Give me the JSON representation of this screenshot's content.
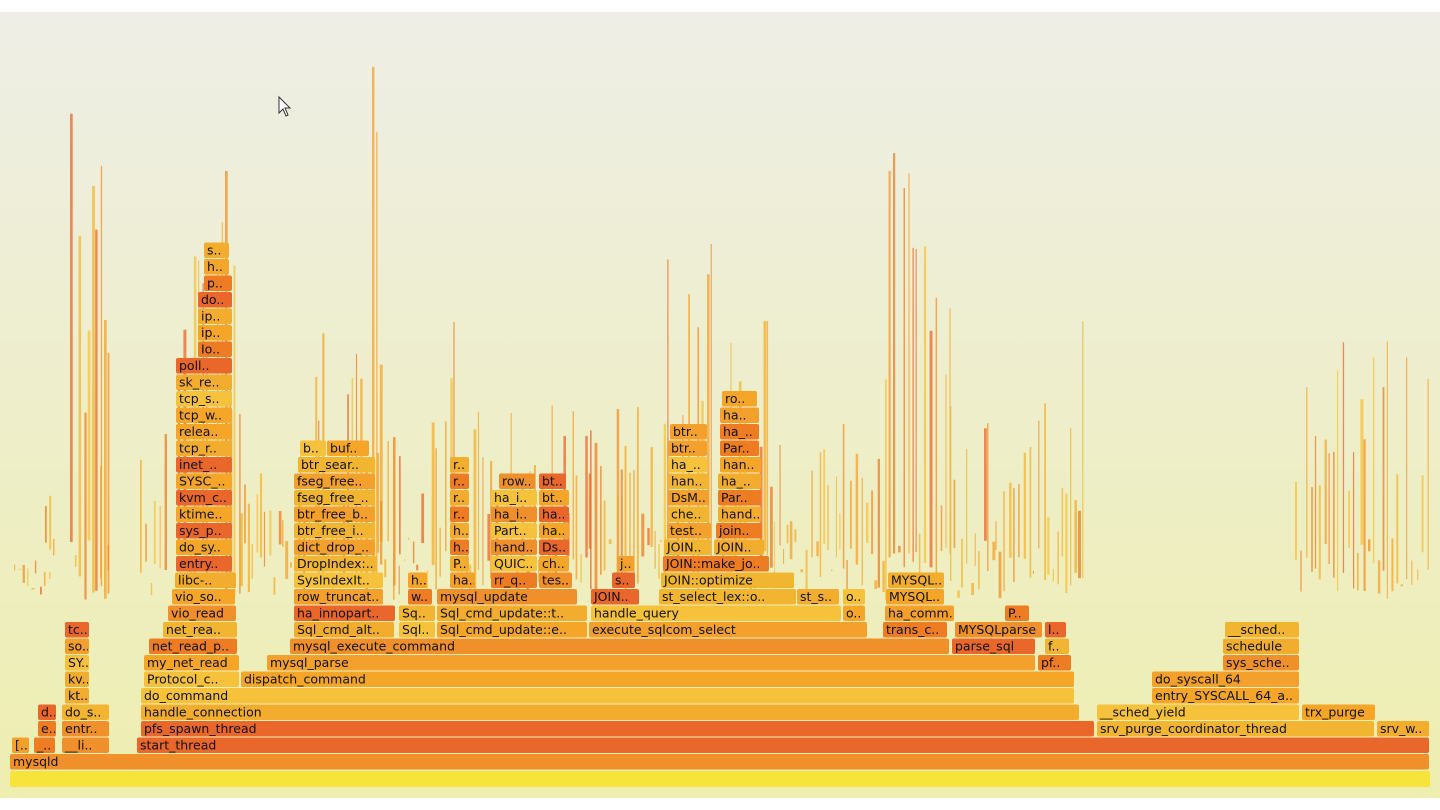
{
  "frames": [
    {
      "label": "mysqld"
    },
    {
      "label": "[.."
    },
    {
      "label": "_.."
    },
    {
      "label": "__li.."
    },
    {
      "label": "start_thread"
    },
    {
      "label": "e.."
    },
    {
      "label": "entr.."
    },
    {
      "label": "pfs_spawn_thread"
    },
    {
      "label": "srv_purge_coordinator_thread"
    },
    {
      "label": "srv_w.."
    },
    {
      "label": "d.."
    },
    {
      "label": "do_s.."
    },
    {
      "label": "handle_connection"
    },
    {
      "label": "__sched_yield"
    },
    {
      "label": "trx_purge"
    },
    {
      "label": "kt.."
    },
    {
      "label": "do_command"
    },
    {
      "label": "entry_SYSCALL_64_a.."
    },
    {
      "label": "kv.."
    },
    {
      "label": "Protocol_c.."
    },
    {
      "label": "dispatch_command"
    },
    {
      "label": "do_syscall_64"
    },
    {
      "label": "SY.."
    },
    {
      "label": "my_net_read"
    },
    {
      "label": "mysql_parse"
    },
    {
      "label": "pf.."
    },
    {
      "label": "sys_sche.."
    },
    {
      "label": "so.."
    },
    {
      "label": "net_read_p.."
    },
    {
      "label": "mysql_execute_command"
    },
    {
      "label": "parse_sql"
    },
    {
      "label": "f.."
    },
    {
      "label": "schedule"
    },
    {
      "label": "tc.."
    },
    {
      "label": "net_rea.."
    },
    {
      "label": "Sql_cmd_alt.."
    },
    {
      "label": "Sql.."
    },
    {
      "label": "Sql_cmd_update::e.."
    },
    {
      "label": "execute_sqlcom_select"
    },
    {
      "label": "trans_c.."
    },
    {
      "label": "MYSQLparse"
    },
    {
      "label": "l.."
    },
    {
      "label": "__sched.."
    },
    {
      "label": "vio_read"
    },
    {
      "label": "ha_innopart.."
    },
    {
      "label": "Sq.."
    },
    {
      "label": "Sql_cmd_update::t.."
    },
    {
      "label": "handle_query"
    },
    {
      "label": "o.."
    },
    {
      "label": "ha_comm.."
    },
    {
      "label": "P.."
    },
    {
      "label": "vio_so.."
    },
    {
      "label": "row_truncat.."
    },
    {
      "label": "w.."
    },
    {
      "label": "mysql_update"
    },
    {
      "label": "JOIN.."
    },
    {
      "label": "st_select_lex::o.."
    },
    {
      "label": "st_s.."
    },
    {
      "label": "o.."
    },
    {
      "label": "MYSQL.."
    },
    {
      "label": "libc-.."
    },
    {
      "label": "SysIndexIt.."
    },
    {
      "label": "h.."
    },
    {
      "label": "ha.."
    },
    {
      "label": "rr_q.."
    },
    {
      "label": "tes.."
    },
    {
      "label": "s.."
    },
    {
      "label": "JOIN::optimize"
    },
    {
      "label": "MYSQL.."
    },
    {
      "label": "entry.."
    },
    {
      "label": "DropIndex:.."
    },
    {
      "label": "P.."
    },
    {
      "label": "QUIC.."
    },
    {
      "label": "ch.."
    },
    {
      "label": "j.."
    },
    {
      "label": "JOIN::make_jo.."
    },
    {
      "label": "do_sy.."
    },
    {
      "label": "dict_drop_.."
    },
    {
      "label": "h.."
    },
    {
      "label": "hand.."
    },
    {
      "label": "Ds.."
    },
    {
      "label": "JOIN.."
    },
    {
      "label": "JOIN.."
    },
    {
      "label": "sys_p.."
    },
    {
      "label": "btr_free_i.."
    },
    {
      "label": "h.."
    },
    {
      "label": "Part.."
    },
    {
      "label": "ha.."
    },
    {
      "label": "test.."
    },
    {
      "label": "join.."
    },
    {
      "label": "ktime.."
    },
    {
      "label": "btr_free_b.."
    },
    {
      "label": "r.."
    },
    {
      "label": "ha_i.."
    },
    {
      "label": "ha.."
    },
    {
      "label": "che.."
    },
    {
      "label": "hand.."
    },
    {
      "label": "kvm_c.."
    },
    {
      "label": "fseg_free_.."
    },
    {
      "label": "r.."
    },
    {
      "label": "ha_i.."
    },
    {
      "label": "bt.."
    },
    {
      "label": "DsM.."
    },
    {
      "label": "Par.."
    },
    {
      "label": "SYSC_.."
    },
    {
      "label": "fseg_free.."
    },
    {
      "label": "r.."
    },
    {
      "label": "row.."
    },
    {
      "label": "bt.."
    },
    {
      "label": "han.."
    },
    {
      "label": "ha_.."
    },
    {
      "label": "inet_.."
    },
    {
      "label": "btr_sear.."
    },
    {
      "label": "r.."
    },
    {
      "label": "ha_.."
    },
    {
      "label": "han.."
    },
    {
      "label": "tcp_r.."
    },
    {
      "label": "b.."
    },
    {
      "label": "buf.."
    },
    {
      "label": "btr.."
    },
    {
      "label": "Par.."
    },
    {
      "label": "relea.."
    },
    {
      "label": "btr.."
    },
    {
      "label": "ha_.."
    },
    {
      "label": "tcp_w.."
    },
    {
      "label": "ha.."
    },
    {
      "label": "tcp_s.."
    },
    {
      "label": "ro.."
    },
    {
      "label": "sk_re.."
    },
    {
      "label": "poll.."
    },
    {
      "label": "Io.."
    },
    {
      "label": "ip.."
    },
    {
      "label": "ip.."
    },
    {
      "label": "do.."
    },
    {
      "label": "p.."
    },
    {
      "label": "h.."
    },
    {
      "label": "s.."
    }
  ]
}
